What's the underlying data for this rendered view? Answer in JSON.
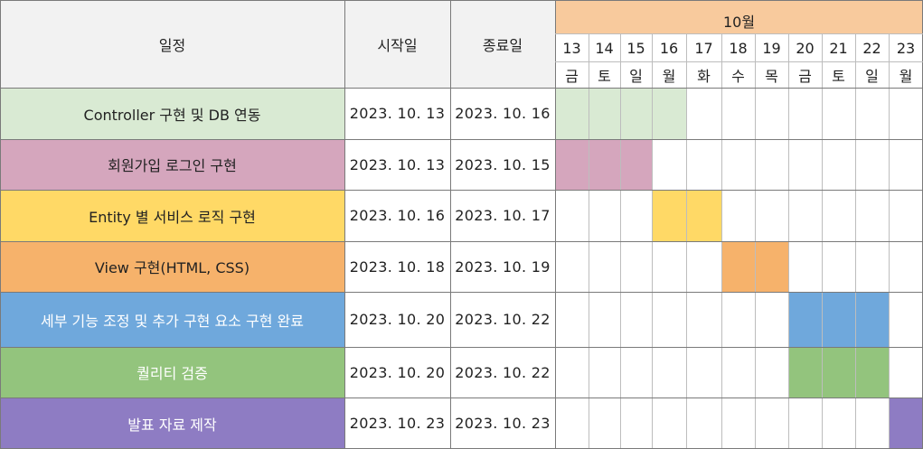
{
  "header": {
    "task_col": "일정",
    "start_col": "시작일",
    "end_col": "종료일",
    "month": "10월"
  },
  "days": [
    {
      "num": "13",
      "weekday": "금"
    },
    {
      "num": "14",
      "weekday": "토"
    },
    {
      "num": "15",
      "weekday": "일"
    },
    {
      "num": "16",
      "weekday": "월"
    },
    {
      "num": "17",
      "weekday": "화"
    },
    {
      "num": "18",
      "weekday": "수"
    },
    {
      "num": "19",
      "weekday": "목"
    },
    {
      "num": "20",
      "weekday": "금"
    },
    {
      "num": "21",
      "weekday": "토"
    },
    {
      "num": "22",
      "weekday": "일"
    },
    {
      "num": "23",
      "weekday": "월"
    }
  ],
  "tasks": [
    {
      "name": "Controller 구현 및 DB 연동",
      "start": "2023. 10. 13",
      "end": "2023. 10. 16",
      "color": "#d9ead3",
      "start_day": 13,
      "end_day": 16
    },
    {
      "name": "회원가입 로그인 구현",
      "start": "2023. 10. 13",
      "end": "2023. 10. 15",
      "color": "#d5a6bd",
      "start_day": 13,
      "end_day": 15
    },
    {
      "name": "Entity 별 서비스 로직 구현",
      "start": "2023. 10. 16",
      "end": "2023. 10. 17",
      "color": "#ffd966",
      "start_day": 16,
      "end_day": 17
    },
    {
      "name": "View 구현(HTML, CSS)",
      "start": "2023. 10. 18",
      "end": "2023. 10. 19",
      "color": "#f6b26b",
      "start_day": 18,
      "end_day": 19
    },
    {
      "name": "세부 기능 조정 및 추가 구현 요소 구현 완료",
      "start": "2023. 10. 20",
      "end": "2023. 10. 22",
      "color": "#6fa8dc",
      "start_day": 20,
      "end_day": 22
    },
    {
      "name": "퀄리티 검증",
      "start": "2023. 10. 20",
      "end": "2023. 10. 22",
      "color": "#93c47d",
      "start_day": 20,
      "end_day": 22
    },
    {
      "name": "발표 자료 제작",
      "start": "2023. 10. 23",
      "end": "2023. 10. 23",
      "color": "#8e7cc3",
      "start_day": 23,
      "end_day": 23
    }
  ]
}
